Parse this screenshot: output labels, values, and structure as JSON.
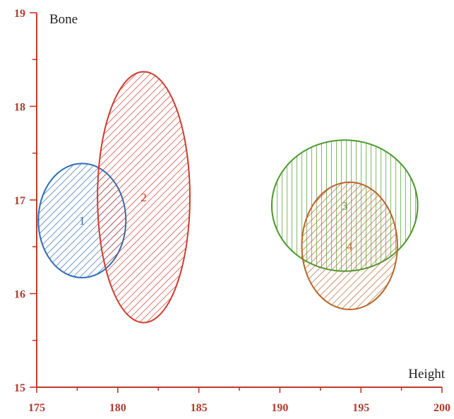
{
  "chart_data": {
    "type": "scatter",
    "title": "",
    "xlabel": "Height",
    "ylabel": "Bone",
    "xlim": [
      175,
      200
    ],
    "ylim": [
      15,
      19
    ],
    "x_ticks": [
      175,
      180,
      185,
      190,
      195,
      200
    ],
    "y_ticks": [
      15,
      16,
      17,
      18,
      19
    ],
    "grid": false,
    "axis_color": "#c0392b",
    "tick_label_color": "#b03a2e",
    "ellipses": [
      {
        "label": "1",
        "cx": 177.8,
        "cy": 16.78,
        "rx": 2.7,
        "ry": 0.61,
        "color": "#2e6db4",
        "hatch": "diagonal"
      },
      {
        "label": "2",
        "cx": 181.6,
        "cy": 17.03,
        "rx": 2.85,
        "ry": 1.34,
        "color": "#cc3d2e",
        "hatch": "diagonal"
      },
      {
        "label": "3",
        "cx": 194.0,
        "cy": 16.94,
        "rx": 4.5,
        "ry": 0.7,
        "color": "#4a9a2e",
        "hatch": "vertical"
      },
      {
        "label": "4",
        "cx": 194.3,
        "cy": 16.51,
        "rx": 2.95,
        "ry": 0.68,
        "color": "#b9652a",
        "hatch": "diagonal"
      }
    ]
  }
}
